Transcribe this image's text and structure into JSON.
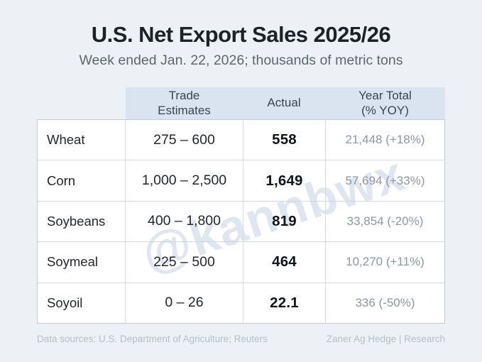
{
  "page": {
    "title": "U.S. Net Export Sales 2025/26",
    "subtitle": "Week ended Jan. 22, 2026; thousands of metric tons",
    "watermark": "@kannbwx",
    "footer_left": "Data sources: U.S. Department of Agriculture; Reuters",
    "footer_right": "Zaner Ag Hedge | Research"
  },
  "colors": {
    "background": "#edf1f6",
    "header_bg": "#dae4f0",
    "table_bg": "#ffffff",
    "border": "#d6dade",
    "title_text": "#1c212b",
    "subtitle_text": "#5c6775",
    "muted_value_text": "#8e97a4",
    "footer_text": "#b5becb"
  },
  "table": {
    "header": {
      "commodity": "",
      "trade_estimates": "Trade\nEstimates",
      "actual": "Actual",
      "year_total": "Year Total\n(% YOY)"
    },
    "rows": [
      {
        "commodity": "Wheat",
        "trade_estimate": "275 – 600",
        "actual": "558",
        "year_total": "21,448 (+18%)"
      },
      {
        "commodity": "Corn",
        "trade_estimate": "1,000 – 2,500",
        "actual": "1,649",
        "year_total": "57,694 (+33%)"
      },
      {
        "commodity": "Soybeans",
        "trade_estimate": "400 – 1,800",
        "actual": "819",
        "year_total": "33,854 (-20%)"
      },
      {
        "commodity": "Soymeal",
        "trade_estimate": "225 – 500",
        "actual": "464",
        "year_total": "10,270 (+11%)"
      },
      {
        "commodity": "Soyoil",
        "trade_estimate": "0 – 26",
        "actual": "22.1",
        "year_total": "336 (-50%)"
      }
    ]
  },
  "chart_data": {
    "type": "table",
    "title": "U.S. Net Export Sales 2025/26",
    "subtitle": "Week ended Jan. 22, 2026; thousands of metric tons",
    "columns": [
      "Commodity",
      "Trade Estimates",
      "Actual",
      "Year Total (% YOY)"
    ],
    "rows": [
      [
        "Wheat",
        "275 – 600",
        558,
        "21,448 (+18%)"
      ],
      [
        "Corn",
        "1,000 – 2,500",
        1649,
        "57,694 (+33%)"
      ],
      [
        "Soybeans",
        "400 – 1,800",
        819,
        "33,854 (-20%)"
      ],
      [
        "Soymeal",
        "225 – 500",
        464,
        "10,270 (+11%)"
      ],
      [
        "Soyoil",
        "0 – 26",
        22.1,
        "336 (-50%)"
      ]
    ],
    "notes": {
      "actual_year_totals": [
        21448,
        57694,
        33854,
        10270,
        336
      ],
      "yoy_percent": [
        18,
        33,
        -20,
        11,
        -50
      ]
    }
  }
}
